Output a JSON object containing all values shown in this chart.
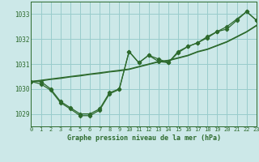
{
  "title": "Graphe pression niveau de la mer (hPa)",
  "bg": "#cce8e8",
  "lc": "#2d6a2d",
  "grid_color": "#99cccc",
  "xlim": [
    0,
    23
  ],
  "ylim": [
    1028.5,
    1033.5
  ],
  "yticks": [
    1029,
    1030,
    1031,
    1032,
    1033
  ],
  "xtick_labels": [
    "0",
    "1",
    "2",
    "3",
    "4",
    "5",
    "6",
    "7",
    "8",
    "9",
    "10",
    "11",
    "12",
    "13",
    "14",
    "15",
    "16",
    "17",
    "18",
    "19",
    "20",
    "21",
    "22",
    "23"
  ],
  "line_straight1": [
    1030.3,
    1030.35,
    1030.4,
    1030.45,
    1030.5,
    1030.55,
    1030.6,
    1030.65,
    1030.7,
    1030.75,
    1030.8,
    1030.9,
    1031.0,
    1031.1,
    1031.15,
    1031.25,
    1031.35,
    1031.5,
    1031.6,
    1031.75,
    1031.9,
    1032.1,
    1032.3,
    1032.55
  ],
  "line_straight2": [
    1030.3,
    1030.32,
    1030.38,
    1030.42,
    1030.48,
    1030.52,
    1030.58,
    1030.62,
    1030.68,
    1030.72,
    1030.78,
    1030.88,
    1030.98,
    1031.08,
    1031.13,
    1031.23,
    1031.33,
    1031.48,
    1031.58,
    1031.73,
    1031.88,
    1032.08,
    1032.28,
    1032.53
  ],
  "line_curvy1": [
    1030.3,
    1030.3,
    1030.0,
    1029.5,
    1029.25,
    1029.0,
    1029.0,
    1029.2,
    1029.85,
    1030.0,
    1031.5,
    1031.05,
    1031.35,
    1031.2,
    1031.05,
    1031.5,
    1031.7,
    1031.85,
    1032.05,
    1032.3,
    1032.4,
    1032.75,
    1033.1,
    1032.75
  ],
  "line_curvy2": [
    1030.3,
    1030.2,
    1029.95,
    1029.45,
    1029.2,
    1028.93,
    1028.93,
    1029.15,
    1029.8,
    1029.98,
    1031.5,
    1031.05,
    1031.35,
    1031.1,
    1031.05,
    1031.45,
    1031.7,
    1031.85,
    1032.1,
    1032.3,
    1032.5,
    1032.8,
    1033.1,
    1032.75
  ],
  "markers_x": [
    0,
    3,
    4,
    5,
    6,
    7,
    8,
    9,
    10,
    11,
    12,
    13,
    14,
    15,
    16,
    17,
    18,
    19,
    20,
    21,
    22,
    23
  ],
  "markers_y1": [
    1030.3,
    1029.5,
    1029.25,
    1029.0,
    1029.0,
    1029.2,
    1029.85,
    1030.0,
    1031.5,
    1031.05,
    1031.35,
    1031.2,
    1031.05,
    1031.5,
    1031.7,
    1031.85,
    1032.05,
    1032.3,
    1032.4,
    1032.75,
    1033.1,
    1032.75
  ],
  "markers_y2": [
    1030.3,
    1029.45,
    1029.2,
    1028.93,
    1028.93,
    1029.15,
    1029.8,
    1029.98,
    1031.5,
    1031.05,
    1031.35,
    1031.1,
    1031.05,
    1031.45,
    1031.7,
    1031.85,
    1032.1,
    1032.3,
    1032.5,
    1032.8,
    1033.1,
    1032.75
  ]
}
